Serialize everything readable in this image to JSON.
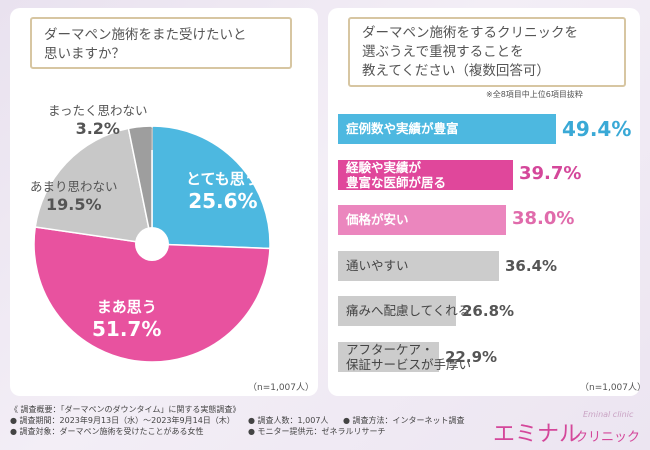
{
  "left": {
    "question": [
      "ダーマペン施術をまた受けたいと",
      "思いますか？"
    ],
    "n_label": "（n=1,007人）"
  },
  "right": {
    "question": [
      "ダーマペン施術をするクリニックを",
      "選ぶうえで重視することを",
      "教えてください（複数回答可）"
    ],
    "note": "※全8項目中上位6項目抜粋",
    "n_label": "（n=1,007人）"
  },
  "chart_data": [
    {
      "type": "pie",
      "title": "ダーマペン施術をまた受けたいと思いますか？",
      "labels": [
        "とても思う",
        "まあ思う",
        "あまり思わない",
        "まったく思わない"
      ],
      "values": [
        25.6,
        51.7,
        19.5,
        3.2
      ],
      "value_labels": [
        "25.6%",
        "51.7%",
        "19.5%",
        "3.2%"
      ],
      "colors": [
        "#4db8e0",
        "#e8529f",
        "#c8c8c8",
        "#9e9e9e"
      ],
      "donut_hole": true
    },
    {
      "type": "bar",
      "orientation": "horizontal",
      "title": "ダーマペン施術をするクリニックを選ぶうえで重視することを教えてください（複数回答可）",
      "categories": [
        [
          "症例数や実績が豊富"
        ],
        [
          "経験や実績が",
          "豊富な医師が居る"
        ],
        [
          "価格が安い"
        ],
        [
          "通いやすい"
        ],
        [
          "痛みへ配慮してくれる"
        ],
        [
          "アフターケア・",
          "保証サービスが手厚い"
        ]
      ],
      "values": [
        49.4,
        39.7,
        38.0,
        36.4,
        26.8,
        22.9
      ],
      "value_labels": [
        "49.4%",
        "39.7%",
        "38.0%",
        "36.4%",
        "26.8%",
        "22.9%"
      ],
      "colors": [
        "#4db8e0",
        "#e0479b",
        "#eb86be",
        "#cccccc",
        "#cccccc",
        "#cccccc"
      ],
      "value_colors": [
        "#3aa9d6",
        "#d4479a",
        "#e06bab",
        "#555555",
        "#555555",
        "#555555"
      ],
      "xlim": [
        0,
        49.4
      ]
    }
  ],
  "footer": {
    "row1": [
      "《 調査概要：「ダーマペンのダウンタイム」に関する実態調査》"
    ],
    "row2": [
      "● 調査期間：2023年9月13日（水）〜2023年9月14日（木）",
      "● 調査人数：1,007人",
      "● 調査方法：インターネット調査"
    ],
    "row3": [
      "● 調査対象：ダーマペン施術を受けたことがある女性",
      "● モニター提供元：ゼネラルリサーチ"
    ]
  },
  "logo": {
    "main": "エミナル",
    "sub": "クリニック",
    "script": "Eminal clinic"
  }
}
